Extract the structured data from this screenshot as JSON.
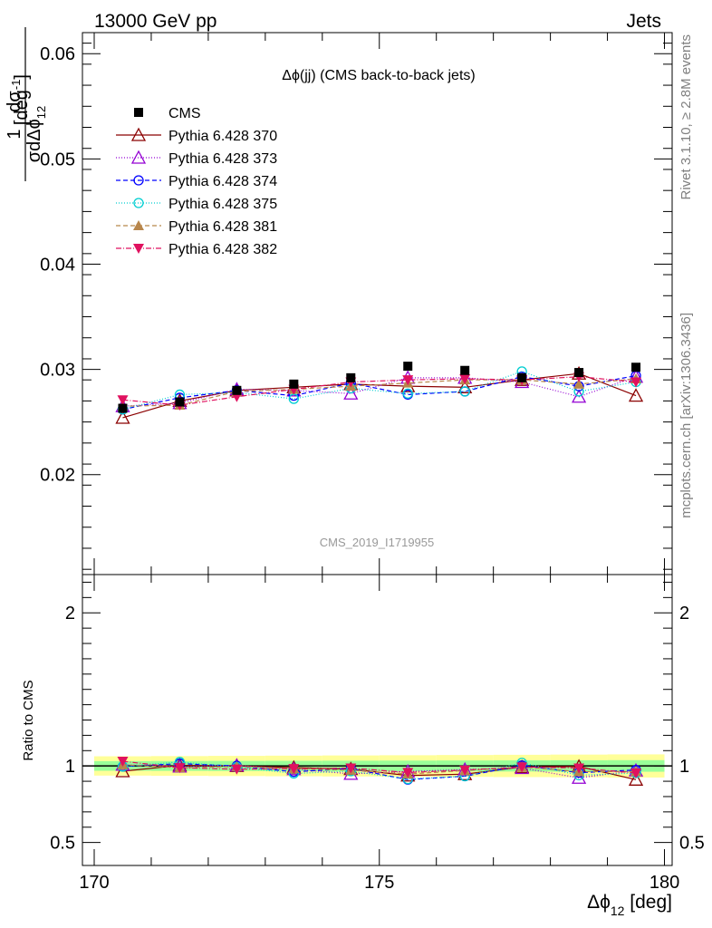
{
  "header": {
    "left": "13000 GeV pp",
    "right": "Jets"
  },
  "side_labels": {
    "rivet": "Rivet 3.1.10, ≥ 2.8M events",
    "source": "mcplots.cern.ch [arXiv:1306.3436]"
  },
  "chart_data": [
    {
      "type": "scatter",
      "title": "Δϕ(jj) (CMS back-to-back jets)",
      "ylabel": "1/σ dσ/dΔϕ12 [deg^-1]",
      "analysis_label": "CMS_2019_I1719955",
      "xlim": [
        170,
        180
      ],
      "ylim": [
        0.0105,
        0.062
      ],
      "yticks": [
        0.02,
        0.03,
        0.04,
        0.05,
        0.06
      ],
      "ytick_labels": [
        "0.02",
        "0.03",
        "0.04",
        "0.05",
        "0.06"
      ],
      "x": [
        170.5,
        171.5,
        172.5,
        173.5,
        174.5,
        175.5,
        176.5,
        177.5,
        178.5,
        179.5
      ],
      "series": [
        {
          "name": "CMS",
          "color": "#000000",
          "style": "data",
          "marker": "square",
          "values": [
            0.0263,
            0.0269,
            0.028,
            0.0286,
            0.0292,
            0.0303,
            0.0299,
            0.0292,
            0.0297,
            0.0302
          ],
          "errors": [
            0.0004,
            0.0004,
            0.0004,
            0.0004,
            0.0004,
            0.0004,
            0.0004,
            0.0004,
            0.0004,
            0.0004
          ]
        },
        {
          "name": "Pythia 6.428 370",
          "color": "#8b0000",
          "dash": "",
          "marker": "triangle-open",
          "values": [
            0.0254,
            0.027,
            0.028,
            0.0283,
            0.0286,
            0.0284,
            0.0283,
            0.029,
            0.0296,
            0.0275
          ]
        },
        {
          "name": "Pythia 6.428 373",
          "color": "#9400d3",
          "dash": "1,2",
          "marker": "triangle-open",
          "values": [
            0.0265,
            0.0268,
            0.0281,
            0.028,
            0.0277,
            0.0292,
            0.0292,
            0.0288,
            0.0274,
            0.0293
          ]
        },
        {
          "name": "Pythia 6.428 374",
          "color": "#0000ff",
          "dash": "5,3",
          "marker": "circle-open",
          "values": [
            0.0262,
            0.0273,
            0.028,
            0.0275,
            0.0287,
            0.0276,
            0.0279,
            0.0293,
            0.0284,
            0.0294
          ]
        },
        {
          "name": "Pythia 6.428 375",
          "color": "#00ced1",
          "dash": "1,2",
          "marker": "circle-open",
          "values": [
            0.0262,
            0.0276,
            0.0278,
            0.0272,
            0.0282,
            0.0277,
            0.0279,
            0.0298,
            0.0279,
            0.0288
          ]
        },
        {
          "name": "Pythia 6.428 381",
          "color": "#b8864b",
          "dash": "5,3",
          "marker": "triangle-filled",
          "values": [
            0.0265,
            0.0266,
            0.0279,
            0.0281,
            0.0284,
            0.0287,
            0.029,
            0.029,
            0.0286,
            0.0291
          ]
        },
        {
          "name": "Pythia 6.428 382",
          "color": "#e0115f",
          "dash": "6,2,1,2",
          "marker": "triangle-down-filled",
          "values": [
            0.0271,
            0.0266,
            0.0274,
            0.0281,
            0.0288,
            0.029,
            0.0291,
            0.029,
            0.0293,
            0.0288
          ]
        }
      ]
    },
    {
      "type": "scatter",
      "ylabel": "Ratio to CMS",
      "xlabel": "Δϕ12 [deg]",
      "xlim": [
        170,
        180
      ],
      "ylim": [
        0.35,
        2.25
      ],
      "yticks": [
        0.5,
        1,
        2
      ],
      "ytick_labels": [
        "0.5",
        "1",
        "2"
      ],
      "xticks": [
        170,
        175,
        180
      ],
      "xtick_labels": [
        "170",
        "175",
        "180"
      ],
      "band_inner": 0.035,
      "band_outer": 0.07,
      "band_inner_color": "#99ff99",
      "band_outer_color": "#ffff99"
    }
  ]
}
